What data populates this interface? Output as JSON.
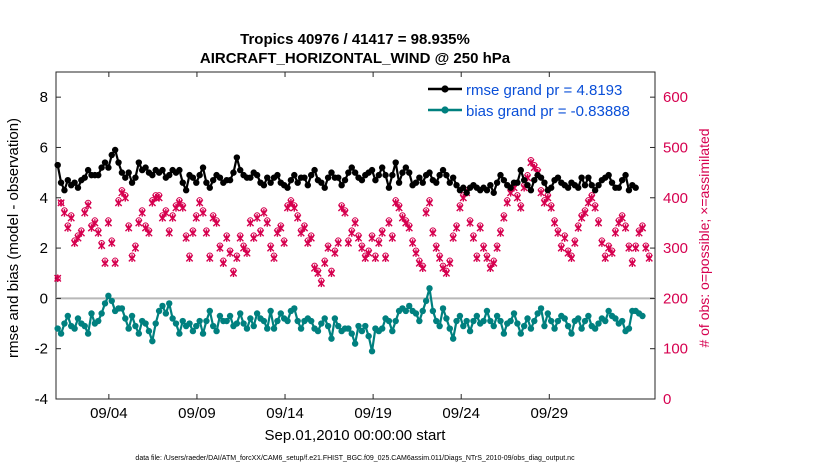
{
  "chart_data": {
    "type": "line",
    "title_line1": "Tropics 40976 / 41417 = 98.935%",
    "title_line2": "AIRCRAFT_HORIZONTAL_WIND @ 250 hPa",
    "xlabel": "Sep.01,2010 00:00:00 start",
    "ylabel_left": "rmse and bias (model - observation)",
    "ylabel_right": "# of obs: o=possible; ×=assimilated",
    "footer": "data file: /Users/raeder/DAI/ATM_forcXX/CAM6_setup/f.e21.FHIST_BGC.f09_025.CAM6assim.011/Diags_NTrS_2010-09/obs_diag_output.nc",
    "xlim": [
      1,
      35
    ],
    "ylim_left": [
      -4,
      9
    ],
    "ylim_right": [
      0,
      650
    ],
    "left_ticks": [
      -4,
      -2,
      0,
      2,
      4,
      6,
      8
    ],
    "right_ticks": [
      0,
      100,
      200,
      300,
      400,
      500,
      600
    ],
    "x_ticks": [
      {
        "day": 4,
        "label": "09/04"
      },
      {
        "day": 9,
        "label": "09/09"
      },
      {
        "day": 14,
        "label": "09/14"
      },
      {
        "day": 19,
        "label": "09/19"
      },
      {
        "day": 24,
        "label": "09/24"
      },
      {
        "day": 29,
        "label": "09/29"
      }
    ],
    "legend": [
      {
        "name": "rmse grand pr = 4.8193",
        "color": "#000000"
      },
      {
        "name": "bias grand pr = -0.83888",
        "color": "#00807f"
      }
    ],
    "colors": {
      "rmse": "#000000",
      "bias": "#00807f",
      "obs": "#d6004f",
      "zero_line": "#b8b8b8"
    },
    "rmse": [
      5.3,
      4.6,
      4.3,
      4.7,
      4.5,
      4.6,
      4.4,
      4.7,
      4.8,
      5.1,
      4.9,
      4.9,
      4.9,
      5.2,
      5.4,
      5.2,
      5.7,
      5.9,
      5.4,
      5.0,
      4.8,
      5.0,
      4.6,
      4.8,
      5.4,
      5.1,
      5.2,
      5.0,
      4.9,
      5.1,
      5.0,
      5.1,
      4.8,
      4.9,
      5.1,
      5.0,
      5.1,
      4.6,
      4.3,
      4.9,
      4.8,
      4.6,
      4.9,
      5.2,
      4.6,
      4.4,
      4.7,
      4.9,
      4.8,
      4.6,
      4.7,
      4.7,
      5.0,
      5.6,
      5.1,
      4.9,
      4.8,
      4.8,
      5.0,
      4.9,
      4.6,
      4.5,
      4.8,
      4.6,
      4.8,
      4.9,
      4.6,
      4.5,
      4.4,
      4.7,
      4.9,
      4.6,
      4.8,
      4.8,
      4.5,
      4.9,
      5.1,
      4.7,
      4.6,
      4.4,
      4.8,
      5.0,
      4.8,
      4.8,
      4.5,
      4.7,
      5.0,
      5.2,
      5.0,
      4.8,
      4.7,
      4.9,
      5.0,
      5.1,
      4.7,
      4.9,
      5.2,
      4.9,
      4.4,
      4.9,
      5.4,
      4.6,
      5.0,
      5.2,
      5.0,
      4.5,
      4.6,
      4.8,
      4.6,
      4.9,
      5.0,
      4.7,
      4.6,
      4.9,
      5.1,
      4.9,
      4.6,
      4.8,
      4.5,
      4.3,
      4.4,
      4.2,
      4.4,
      4.5,
      4.4,
      4.3,
      4.4,
      4.3,
      4.5,
      4.2,
      4.6,
      4.9,
      4.7,
      4.5,
      4.4,
      4.6,
      4.6,
      5.1,
      4.7,
      4.5,
      4.3,
      4.7,
      4.9,
      4.8,
      4.6,
      4.3,
      4.4,
      4.7,
      4.8,
      4.6,
      4.5,
      4.4,
      4.6,
      4.5,
      4.4,
      4.8,
      4.5,
      4.8,
      4.5,
      4.3,
      4.5,
      4.7,
      4.8,
      4.9,
      4.6,
      4.4,
      4.4,
      4.7,
      4.9,
      4.3,
      4.5,
      4.4
    ],
    "bias": [
      -1.2,
      -1.4,
      -1.0,
      -0.7,
      -1.1,
      -1.2,
      -0.8,
      -1.0,
      -1.1,
      -1.4,
      -0.6,
      -1.0,
      -0.9,
      -0.6,
      -0.2,
      0.1,
      -0.1,
      -0.5,
      -0.4,
      -0.4,
      -0.8,
      -1.2,
      -0.7,
      -1.1,
      -1.4,
      -0.9,
      -1.0,
      -1.3,
      -1.7,
      -1.0,
      -0.5,
      -0.3,
      -0.6,
      -0.2,
      -0.8,
      -1.0,
      -1.4,
      -0.9,
      -1.1,
      -1.0,
      -1.3,
      -1.1,
      -0.9,
      -1.4,
      -0.9,
      -0.5,
      -1.1,
      -1.3,
      -0.7,
      -0.9,
      -0.9,
      -0.7,
      -1.1,
      -1.0,
      -0.6,
      -1.0,
      -1.2,
      -0.8,
      -1.1,
      -0.6,
      -0.8,
      -0.9,
      -1.2,
      -0.5,
      -1.2,
      -0.9,
      -0.6,
      -0.8,
      -0.9,
      -0.5,
      -0.4,
      -0.9,
      -1.2,
      -0.9,
      -0.8,
      -0.9,
      -1.2,
      -1.3,
      -1.0,
      -0.8,
      -1.1,
      -1.6,
      -0.8,
      -1.1,
      -1.3,
      -1.2,
      -1.2,
      -1.4,
      -1.8,
      -1.1,
      -1.3,
      -1.1,
      -1.5,
      -2.1,
      -1.2,
      -1.3,
      -1.2,
      -0.8,
      -0.9,
      -1.3,
      -0.9,
      -0.5,
      -0.4,
      -0.5,
      -0.3,
      -0.5,
      -0.6,
      -0.9,
      -0.5,
      -0.1,
      0.4,
      -0.5,
      -0.9,
      -1.1,
      -0.4,
      -0.8,
      -1.2,
      -1.6,
      -0.9,
      -0.7,
      -1.1,
      -0.9,
      -1.3,
      -0.9,
      -0.7,
      -1.0,
      -0.9,
      -0.5,
      -0.9,
      -1.1,
      -0.7,
      -0.9,
      -1.4,
      -1.0,
      -0.9,
      -0.6,
      -1.0,
      -1.4,
      -1.1,
      -0.8,
      -1.2,
      -0.9,
      -0.6,
      -0.4,
      -1.1,
      -0.6,
      -0.9,
      -1.2,
      -0.9,
      -0.7,
      -0.8,
      -1.1,
      -1.4,
      -0.9,
      -0.8,
      -1.2,
      -0.9,
      -0.7,
      -1.1,
      -1.2,
      -1.0,
      -0.8,
      -0.9,
      -0.5,
      -0.7,
      -0.8,
      -1.0,
      -0.9,
      -1.3,
      -1.2,
      -0.5,
      -0.5,
      -0.6,
      -0.7
    ],
    "obs_assimilated": [
      240,
      390,
      370,
      340,
      360,
      310,
      320,
      330,
      370,
      385,
      340,
      350,
      330,
      305,
      270,
      350,
      310,
      270,
      390,
      410,
      400,
      340,
      280,
      300,
      350,
      370,
      340,
      330,
      390,
      400,
      400,
      360,
      370,
      330,
      360,
      380,
      390,
      380,
      320,
      280,
      330,
      360,
      390,
      370,
      330,
      280,
      360,
      350,
      300,
      270,
      320,
      290,
      250,
      280,
      320,
      300,
      290,
      350,
      320,
      360,
      330,
      370,
      350,
      300,
      280,
      330,
      340,
      310,
      380,
      390,
      380,
      360,
      330,
      340,
      310,
      320,
      260,
      250,
      230,
      270,
      300,
      250,
      290,
      310,
      380,
      370,
      310,
      330,
      350,
      320,
      300,
      280,
      290,
      320,
      280,
      310,
      330,
      280,
      350,
      320,
      390,
      380,
      360,
      350,
      340,
      310,
      290,
      270,
      260,
      370,
      390,
      330,
      300,
      280,
      260,
      250,
      270,
      320,
      340,
      380,
      400,
      410,
      350,
      320,
      280,
      340,
      300,
      280,
      260,
      270,
      300,
      330,
      360,
      390,
      410,
      420,
      400,
      380,
      420,
      440,
      470,
      460,
      450,
      410,
      390,
      400,
      380,
      350,
      330,
      300,
      320,
      290,
      280,
      310,
      340,
      360,
      370,
      390,
      400,
      380,
      350,
      310,
      280,
      300,
      290,
      330,
      350,
      360,
      340,
      300,
      270,
      300,
      330,
      340,
      300,
      280
    ],
    "obs_possible": [
      240,
      390,
      375,
      345,
      365,
      315,
      325,
      335,
      375,
      390,
      345,
      355,
      335,
      310,
      275,
      355,
      315,
      275,
      395,
      415,
      405,
      345,
      285,
      305,
      355,
      375,
      345,
      335,
      395,
      405,
      405,
      365,
      375,
      335,
      365,
      385,
      395,
      385,
      325,
      285,
      335,
      365,
      395,
      375,
      335,
      285,
      365,
      355,
      305,
      275,
      325,
      295,
      255,
      285,
      325,
      305,
      295,
      355,
      325,
      365,
      335,
      375,
      355,
      305,
      285,
      335,
      345,
      315,
      385,
      395,
      385,
      365,
      335,
      345,
      315,
      325,
      265,
      255,
      235,
      275,
      305,
      255,
      295,
      315,
      385,
      375,
      315,
      335,
      355,
      325,
      305,
      285,
      295,
      325,
      285,
      315,
      335,
      285,
      355,
      325,
      395,
      385,
      365,
      355,
      345,
      315,
      295,
      275,
      265,
      375,
      395,
      335,
      305,
      285,
      265,
      255,
      275,
      325,
      345,
      385,
      405,
      415,
      355,
      325,
      285,
      345,
      305,
      285,
      265,
      275,
      305,
      335,
      365,
      395,
      415,
      425,
      405,
      385,
      425,
      445,
      475,
      465,
      455,
      415,
      395,
      405,
      385,
      355,
      335,
      305,
      325,
      295,
      285,
      315,
      345,
      365,
      375,
      395,
      405,
      385,
      355,
      315,
      285,
      305,
      295,
      335,
      355,
      365,
      345,
      305,
      275,
      305,
      335,
      345,
      305,
      285
    ]
  }
}
